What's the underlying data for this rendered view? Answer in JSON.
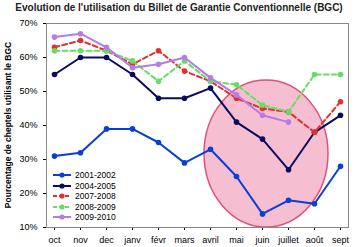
{
  "chart_data": {
    "type": "line",
    "title": "Evolution de l'utilisation du Billet de Garantie Conventionnelle (BGC)",
    "y_label": "Pourcentage de cheptels utilisant le BGC",
    "categories": [
      "oct",
      "nov",
      "dec",
      "janv",
      "févr",
      "mars",
      "avril",
      "mai",
      "juin",
      "juillet",
      "août",
      "sept"
    ],
    "series": [
      {
        "name": "2001-2002",
        "color": "#0a3fd6",
        "marker": "circle",
        "line_style": "solid",
        "values": [
          31,
          32,
          39,
          39,
          35,
          29,
          33,
          25,
          14,
          18,
          17,
          28
        ]
      },
      {
        "name": "2004-2005",
        "color": "#0b0b5e",
        "marker": "circle",
        "line_style": "solid",
        "values": [
          55,
          60,
          60,
          55,
          48,
          48,
          51,
          41,
          36,
          27,
          38,
          43
        ]
      },
      {
        "name": "2007-2008",
        "color": "#e03030",
        "marker": "circle",
        "line_style": "dashed",
        "values": [
          63,
          65,
          62,
          58,
          62,
          56,
          53,
          48,
          45,
          44,
          38,
          47
        ]
      },
      {
        "name": "2008-2009",
        "color": "#66dd66",
        "marker": "circle",
        "line_style": "dashed",
        "values": [
          62,
          62,
          62,
          59,
          53,
          59,
          53,
          52,
          46,
          44,
          55,
          55
        ]
      },
      {
        "name": "2009-2010",
        "color": "#b57be6",
        "marker": "circle",
        "line_style": "solid",
        "values": [
          66,
          67,
          63,
          57,
          58,
          60,
          54,
          49,
          43,
          41,
          null,
          null
        ]
      }
    ],
    "ylim": [
      10,
      70
    ],
    "yticks": [
      {
        "value": 10,
        "label": "10%"
      },
      {
        "value": 20,
        "label": "20%"
      },
      {
        "value": 30,
        "label": "30%"
      },
      {
        "value": 40,
        "label": "40%"
      },
      {
        "value": 50,
        "label": "50%"
      },
      {
        "value": 60,
        "label": "60%"
      },
      {
        "value": 70,
        "label": "70%"
      }
    ],
    "grid": false,
    "legend": "bottom-left"
  }
}
